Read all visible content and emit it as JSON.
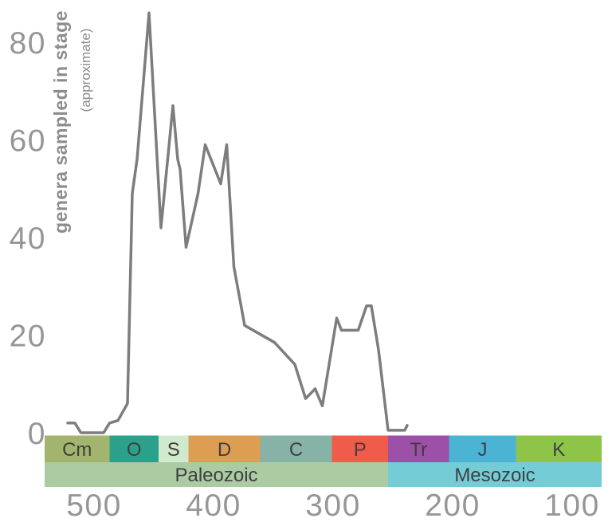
{
  "figure": {
    "ylabel": "genera sampled in stage",
    "ylabel_note": "(approximate)"
  },
  "chart_data": {
    "type": "line",
    "title": "",
    "xlabel": "",
    "ylabel": "genera sampled in stage (approximate)",
    "x_axis_reversed": true,
    "x_unit": "Ma",
    "x_range": [
      539.3,
      73.3
    ],
    "y_range": [
      0,
      88
    ],
    "x_ticks": [
      500,
      400,
      300,
      200,
      100
    ],
    "y_ticks": [
      0,
      20,
      40,
      60,
      80
    ],
    "grid": false,
    "legend": "none",
    "line_color": "#7d7d7d",
    "tick_color": "#969696",
    "series": [
      {
        "name": "genera sampled in stage",
        "x": [
          520,
          514,
          509,
          490,
          485,
          478,
          470,
          466,
          462,
          452,
          442,
          432,
          428,
          426,
          421,
          411,
          405,
          392,
          387,
          381,
          372,
          347,
          330,
          321,
          313,
          307,
          295,
          291,
          277,
          270,
          266,
          260,
          252,
          238,
          236
        ],
        "y": [
          2,
          2,
          0,
          0,
          2,
          2.5,
          6,
          49,
          56,
          86,
          42,
          67,
          56,
          54,
          38,
          49,
          59,
          51,
          59,
          34,
          22,
          18.5,
          14,
          7,
          9,
          5.5,
          23.5,
          21,
          21,
          26,
          26,
          17,
          0.5,
          0.5,
          1.5
        ]
      }
    ],
    "periods": [
      {
        "label": "Cm",
        "from": 541,
        "to": 485,
        "color": "#a3b46e"
      },
      {
        "label": "O",
        "from": 485,
        "to": 444,
        "color": "#2ba18c"
      },
      {
        "label": "S",
        "from": 444,
        "to": 419,
        "color": "#cfeacd"
      },
      {
        "label": "D",
        "from": 419,
        "to": 359,
        "color": "#dd9e53"
      },
      {
        "label": "C",
        "from": 359,
        "to": 299,
        "color": "#87b2a8"
      },
      {
        "label": "P",
        "from": 299,
        "to": 252,
        "color": "#f05c49"
      },
      {
        "label": "Tr",
        "from": 252,
        "to": 201,
        "color": "#9c50a8"
      },
      {
        "label": "J",
        "from": 201,
        "to": 145,
        "color": "#4bb4d5"
      },
      {
        "label": "K",
        "from": 145,
        "to": 66,
        "color": "#8ec549"
      }
    ],
    "eras": [
      {
        "label": "Paleozoic",
        "from": 541,
        "to": 252,
        "color": "#abcba2"
      },
      {
        "label": "Mesozoic",
        "from": 252,
        "to": 66,
        "color": "#73ccd6"
      }
    ]
  }
}
